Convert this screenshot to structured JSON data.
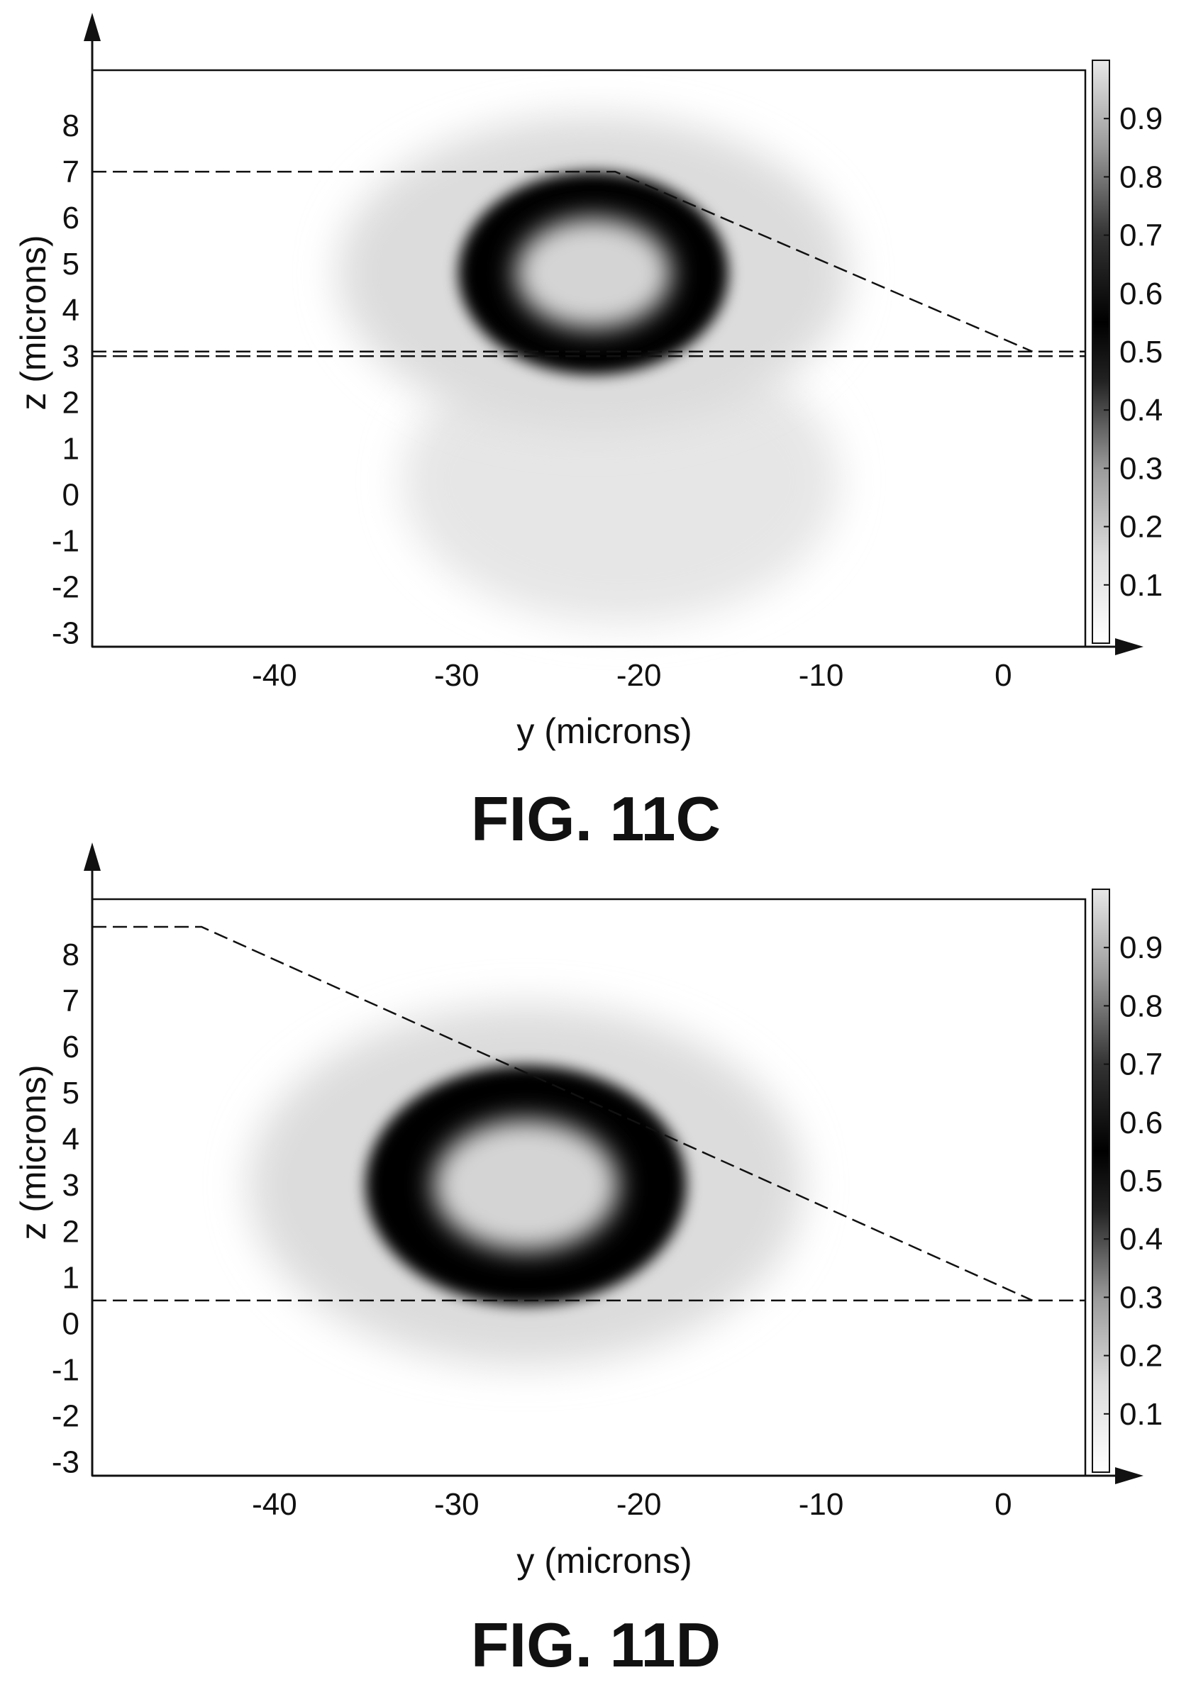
{
  "figures": [
    {
      "caption": "FIG. 11C",
      "chart_data": {
        "type": "heatmap",
        "xlabel": "y (microns)",
        "ylabel": "z (microns)",
        "xlim": [
          -50,
          4.5
        ],
        "ylim": [
          -3.3,
          9.2
        ],
        "xticks": [
          -40,
          -30,
          -20,
          -10,
          0
        ],
        "yticks": [
          8,
          7,
          6,
          5,
          4,
          3,
          2,
          1,
          0,
          -1,
          -2,
          -3
        ],
        "colorbar": {
          "range": [
            0,
            1
          ],
          "ticks": [
            "0.9",
            "0.8",
            "0.7",
            "0.6",
            "0.5",
            "0.4",
            "0.3",
            "0.2",
            "0.1"
          ]
        },
        "colormap_note": "grayscale, light at 0 and 1, darkest near 0.5",
        "mode": {
          "center_y": -22.5,
          "center_z": 4.8,
          "radius_y": 7.4,
          "radius_z": 2.2,
          "halo_y": 14,
          "halo_z": 3.4,
          "lower_lobe": {
            "center_y": -21,
            "center_z": 0.3,
            "radius_y": 12,
            "radius_z": 3.1
          }
        },
        "guides": [
          {
            "points": [
              [
                -50,
                7.0
              ],
              [
                -21.3,
                7.0
              ],
              [
                1.6,
                3.1
              ]
            ]
          },
          {
            "points": [
              [
                -50,
                3.1
              ],
              [
                4.5,
                3.1
              ]
            ]
          },
          {
            "points": [
              [
                -50,
                3.0
              ],
              [
                4.5,
                3.0
              ]
            ]
          }
        ]
      }
    },
    {
      "caption": "FIG. 11D",
      "chart_data": {
        "type": "heatmap",
        "xlabel": "y (microns)",
        "ylabel": "z (microns)",
        "xlim": [
          -50,
          4.5
        ],
        "ylim": [
          -3.3,
          9.2
        ],
        "xticks": [
          -40,
          -30,
          -20,
          -10,
          0
        ],
        "yticks": [
          8,
          7,
          6,
          5,
          4,
          3,
          2,
          1,
          0,
          -1,
          -2,
          -3
        ],
        "colorbar": {
          "range": [
            0,
            1
          ],
          "ticks": [
            "0.9",
            "0.8",
            "0.7",
            "0.6",
            "0.5",
            "0.4",
            "0.3",
            "0.2",
            "0.1"
          ]
        },
        "colormap_note": "grayscale, light at 0 and 1, darkest near 0.5",
        "mode": {
          "center_y": -26.2,
          "center_z": 3.0,
          "radius_y": 8.8,
          "radius_z": 2.6,
          "halo_y": 15.2,
          "halo_z": 3.9,
          "lower_lobe": null
        },
        "guides": [
          {
            "points": [
              [
                -50,
                8.6
              ],
              [
                -44,
                8.6
              ],
              [
                1.6,
                0.5
              ]
            ]
          },
          {
            "points": [
              [
                -50,
                0.5
              ],
              [
                4.5,
                0.5
              ]
            ]
          }
        ]
      }
    }
  ],
  "colors": {
    "ink": "#111111",
    "background": "#ffffff"
  }
}
